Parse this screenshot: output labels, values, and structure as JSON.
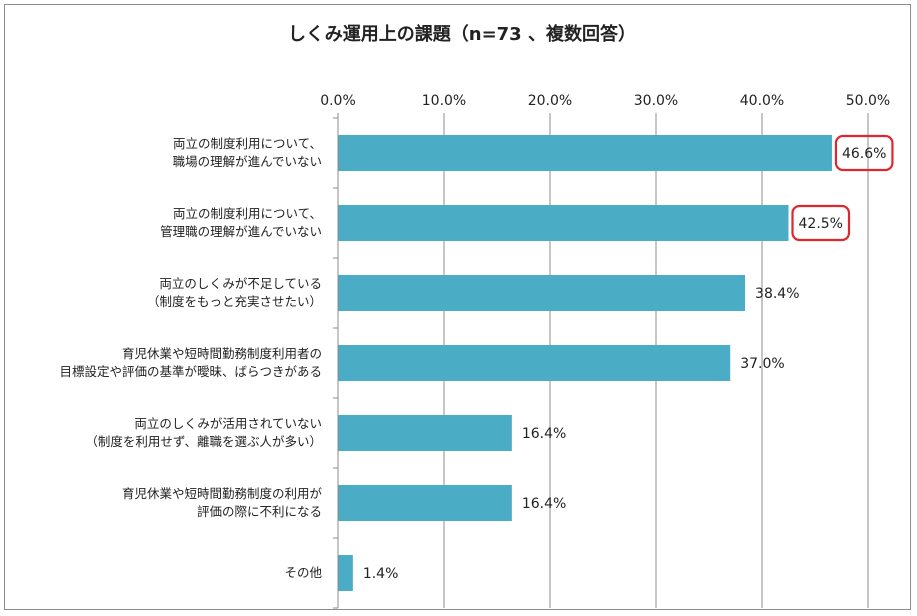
{
  "chart_data": {
    "type": "bar",
    "orientation": "horizontal",
    "title": "しくみ運用上の課題（n=73 、複数回答）",
    "xlim": [
      0,
      50
    ],
    "ticks": [
      0,
      10,
      20,
      30,
      40,
      50
    ],
    "tick_labels": [
      "0.0%",
      "10.0%",
      "20.0%",
      "30.0%",
      "40.0%",
      "50.0%"
    ],
    "tick_position": "top",
    "grid": true,
    "bar_color": "#4bacc6",
    "highlight_color": "#e0262e",
    "categories": [
      [
        "両立の制度利用について、",
        "職場の理解が進んでいない"
      ],
      [
        "両立の制度利用について、",
        "管理職の理解が進んでいない"
      ],
      [
        "両立のしくみが不足している",
        "（制度をもっと充実させたい）"
      ],
      [
        "育児休業や短時間勤務制度利用者の",
        "目標設定や評価の基準が曖昧、ばらつきがある"
      ],
      [
        "両立のしくみが活用されていない",
        "（制度を利用せず、離職を選ぶ人が多い）"
      ],
      [
        "育児休業や短時間勤務制度の利用が",
        "評価の際に不利になる"
      ],
      [
        "その他"
      ]
    ],
    "values": [
      46.6,
      42.5,
      38.4,
      37.0,
      16.4,
      16.4,
      1.4
    ],
    "value_labels": [
      "46.6%",
      "42.5%",
      "38.4%",
      "37.0%",
      "16.4%",
      "16.4%",
      "1.4%"
    ],
    "highlighted": [
      true,
      true,
      false,
      false,
      false,
      false,
      false
    ]
  }
}
